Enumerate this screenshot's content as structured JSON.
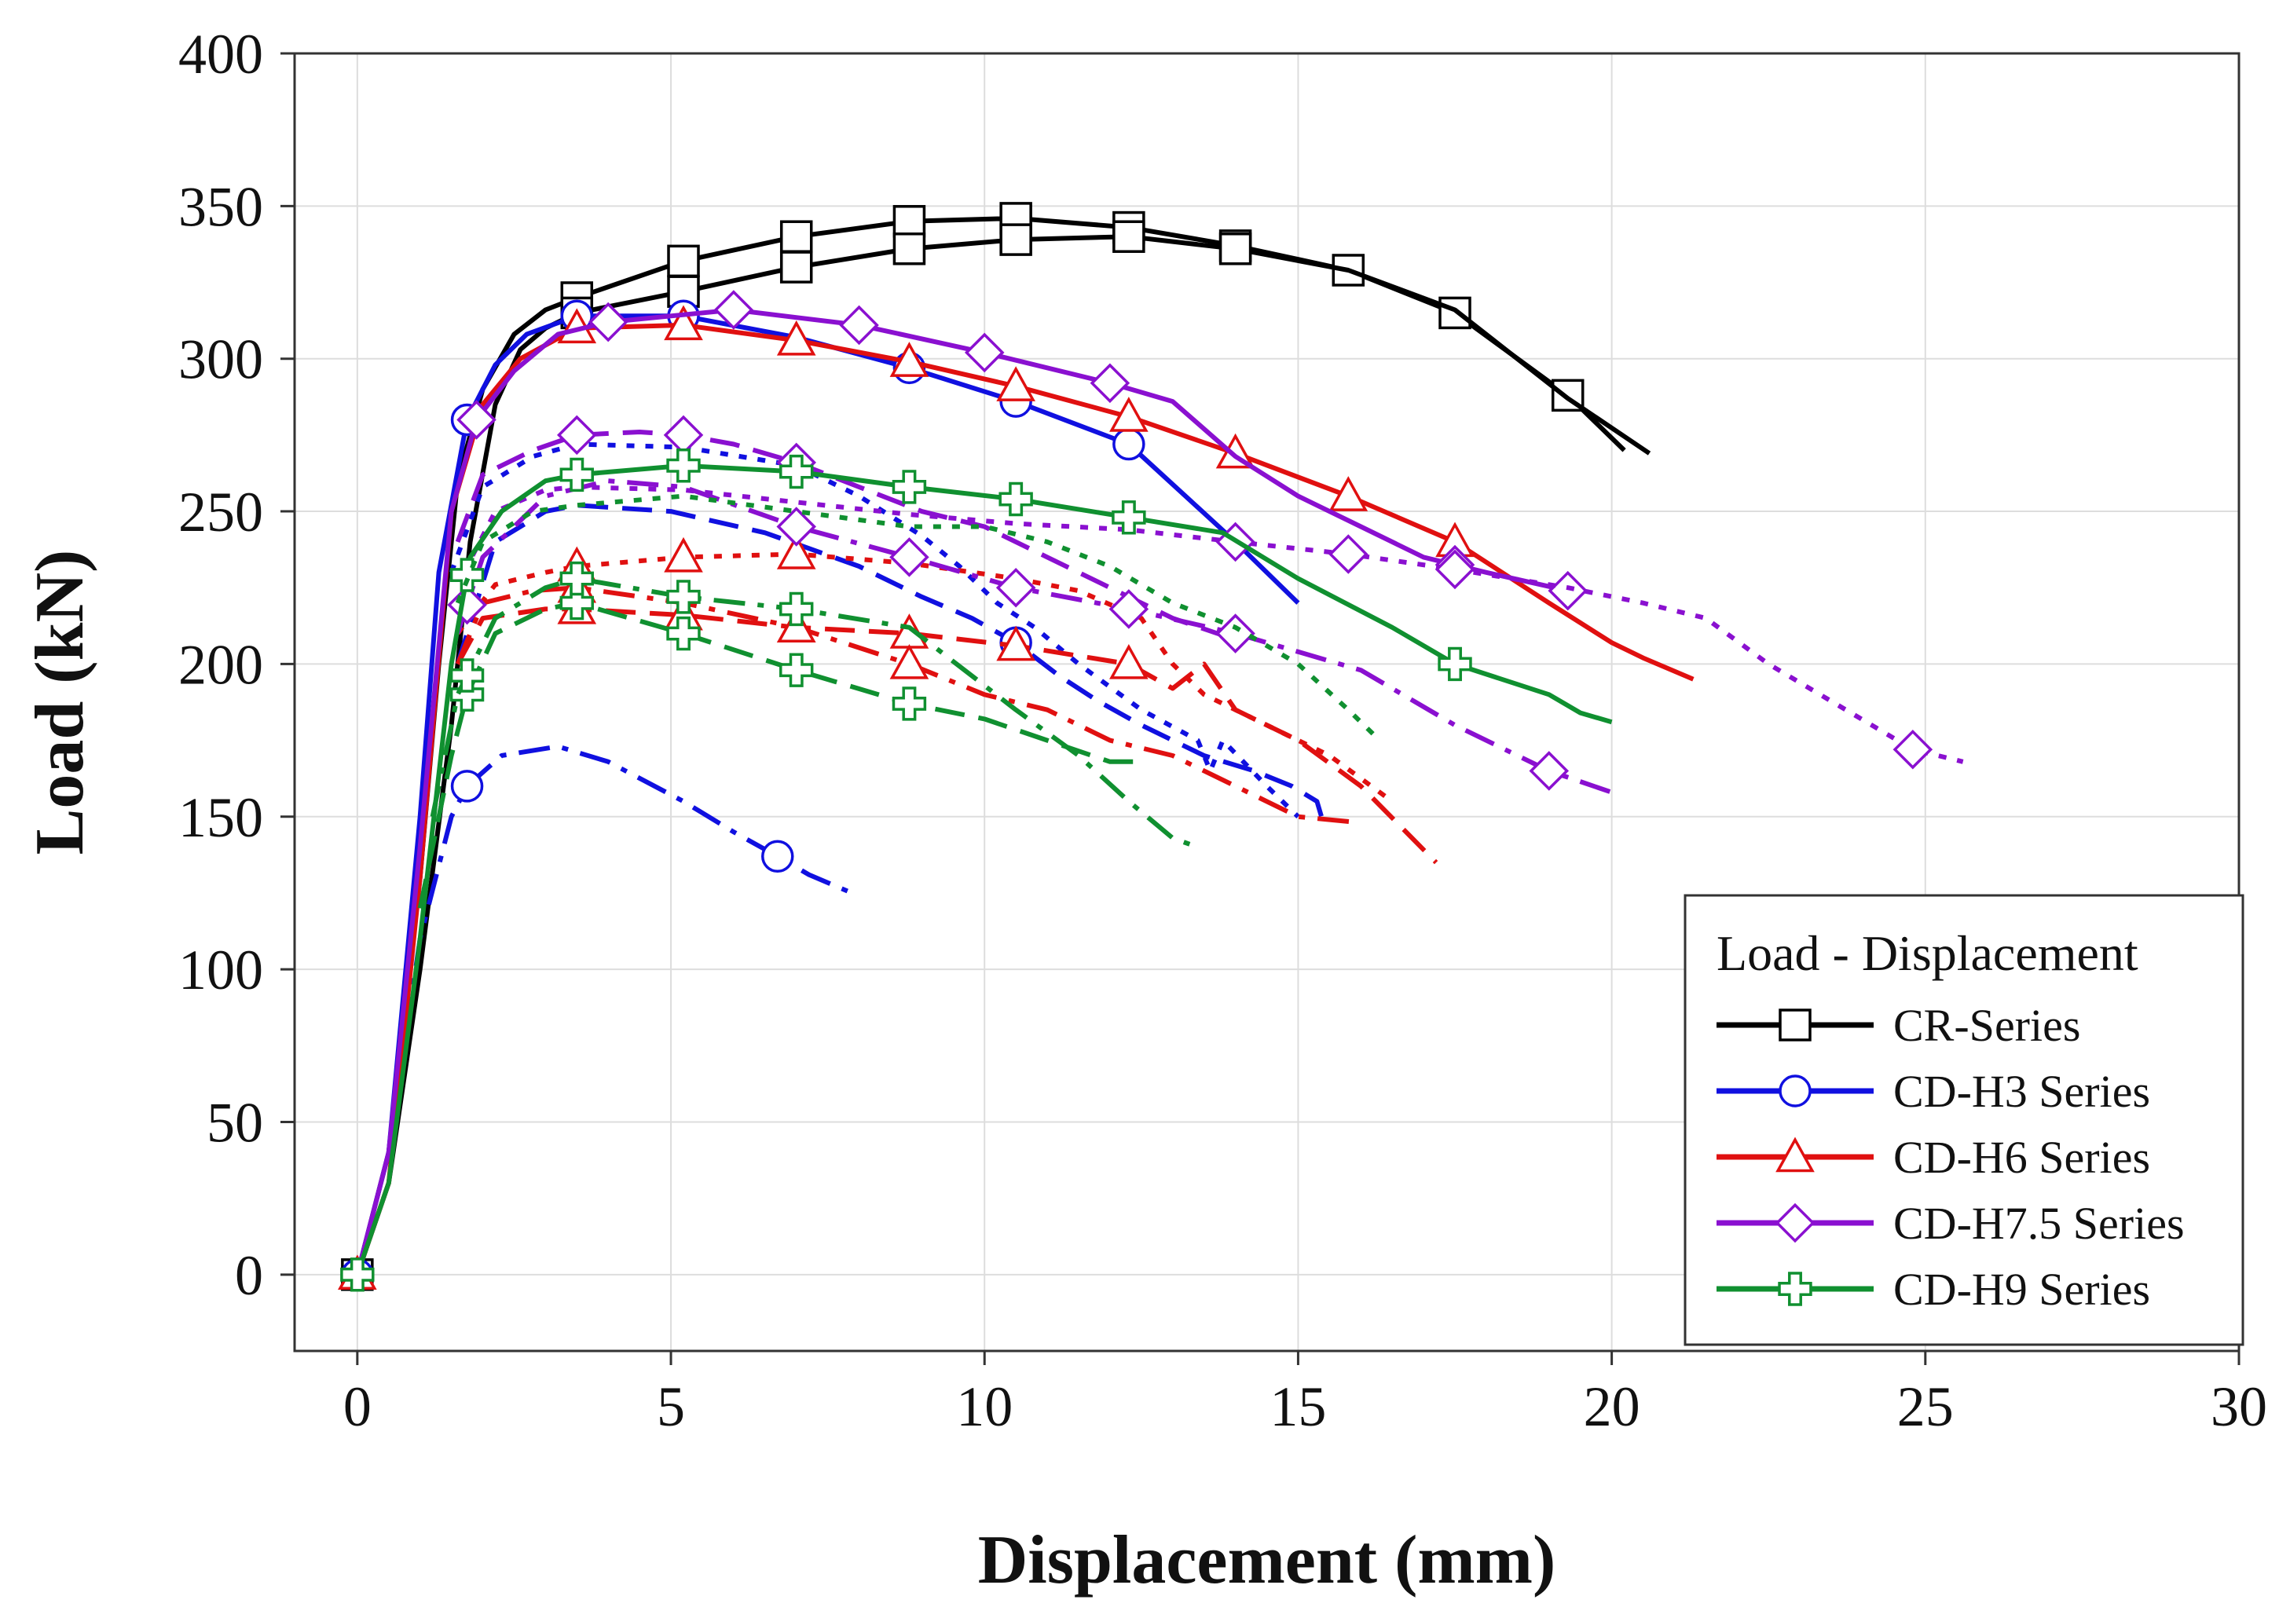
{
  "chart_data": {
    "type": "line",
    "title": "",
    "xlabel": "Displacement (mm)",
    "ylabel": "Load (kN)",
    "xlim": [
      -1,
      30
    ],
    "ylim": [
      -25,
      400
    ],
    "xticks": [
      0,
      5,
      10,
      15,
      20,
      25,
      30
    ],
    "yticks": [
      0,
      50,
      100,
      150,
      200,
      250,
      300,
      350,
      400
    ],
    "grid": true,
    "legend": {
      "title": "Load - Displacement",
      "placement": "bottom-right",
      "entries": [
        {
          "label": "CR-Series",
          "color": "#000000",
          "marker": "square"
        },
        {
          "label": "CD-H3 Series",
          "color": "#1010e0",
          "marker": "circle"
        },
        {
          "label": "CD-H6 Series",
          "color": "#e01010",
          "marker": "triangle"
        },
        {
          "label": "CD-H7.5 Series",
          "color": "#8a10d0",
          "marker": "diamond"
        },
        {
          "label": "CD-H9 Series",
          "color": "#109030",
          "marker": "cross"
        }
      ]
    },
    "series": [
      {
        "name": "CR-Series",
        "color": "#000000",
        "marker": "square",
        "dash": "solid",
        "x": [
          0,
          0.5,
          1.0,
          1.3,
          1.6,
          2.0,
          2.5,
          3.0,
          3.5,
          5.2,
          7.0,
          8.8,
          10.5,
          12.3,
          14.0,
          15.8,
          17.5,
          19.3,
          20.2
        ],
        "y": [
          0,
          40,
          130,
          200,
          260,
          290,
          308,
          316,
          320,
          332,
          340,
          345,
          346,
          343,
          337,
          329,
          315,
          288,
          270
        ],
        "markers_x": [
          0,
          3.5,
          5.2,
          7.0,
          8.8,
          10.5,
          12.3,
          14.0,
          15.8,
          17.5,
          19.3
        ]
      },
      {
        "name": "CR-Series",
        "color": "#000000",
        "marker": "square",
        "dash": "solid",
        "x": [
          0,
          0.5,
          1.0,
          1.5,
          1.8,
          2.2,
          2.6,
          3.0,
          3.5,
          5.2,
          7.0,
          8.8,
          10.5,
          12.3,
          14.0,
          15.8,
          17.5,
          19.3,
          20.6
        ],
        "y": [
          0,
          30,
          100,
          180,
          240,
          285,
          303,
          310,
          315,
          322,
          330,
          336,
          339,
          340,
          336,
          329,
          316,
          287,
          269
        ],
        "markers_x": [
          3.5,
          5.2,
          7.0,
          8.8,
          10.5,
          12.3,
          14.0
        ]
      },
      {
        "name": "CD-H3 Series",
        "color": "#1010e0",
        "marker": "circle",
        "dash": "solid",
        "x": [
          0,
          0.5,
          1.0,
          1.3,
          1.75,
          2.2,
          2.7,
          3.5,
          5.2,
          7.0,
          8.8,
          10.5,
          12.3,
          14.0,
          15.0
        ],
        "y": [
          0,
          40,
          150,
          230,
          280,
          298,
          308,
          314,
          314,
          307,
          297,
          286,
          272,
          240,
          220
        ],
        "markers_x": [
          0,
          1.75,
          3.5,
          5.2,
          8.8,
          10.5,
          12.3
        ]
      },
      {
        "name": "CD-H3 Series",
        "color": "#1010e0",
        "marker": "circle",
        "dash": "dot",
        "x": [
          1.5,
          2.0,
          2.8,
          3.5,
          5.2,
          7.0,
          8.0,
          9.0,
          9.6,
          10.2,
          10.8,
          11.5,
          12.5,
          13.4,
          13.6,
          13.8,
          14.5,
          15.0
        ],
        "y": [
          230,
          258,
          268,
          272,
          271,
          265,
          255,
          242,
          232,
          220,
          212,
          200,
          185,
          175,
          165,
          175,
          160,
          150
        ],
        "markers_x": []
      },
      {
        "name": "CD-H3 Series",
        "color": "#1010e0",
        "marker": "circle",
        "dash": "dash",
        "x": [
          1.6,
          2.2,
          3.0,
          3.5,
          5.0,
          6.5,
          8.0,
          9.0,
          9.8,
          10.5,
          11.2,
          11.8,
          12.5,
          13.0,
          13.5,
          14.3,
          14.9,
          15.3,
          15.4
        ],
        "y": [
          200,
          240,
          250,
          252,
          250,
          243,
          232,
          222,
          215,
          207,
          196,
          188,
          180,
          175,
          170,
          165,
          160,
          155,
          148
        ],
        "markers_x": [
          10.5
        ]
      },
      {
        "name": "CD-H3 Series",
        "color": "#1010e0",
        "marker": "circle",
        "dash": "dashdot",
        "x": [
          0.5,
          1.0,
          1.5,
          1.75,
          2.3,
          3.2,
          4.0,
          5.2,
          6.0,
          6.7,
          7.2,
          8.0
        ],
        "y": [
          40,
          110,
          150,
          160,
          170,
          173,
          168,
          155,
          145,
          137,
          131,
          124
        ],
        "markers_x": [
          1.75,
          6.7
        ]
      },
      {
        "name": "CD-H6 Series",
        "color": "#e01010",
        "marker": "triangle",
        "dash": "solid",
        "x": [
          0,
          0.5,
          1.0,
          1.5,
          2.0,
          2.6,
          3.5,
          5.2,
          7.0,
          8.8,
          10.5,
          12.3,
          14.0,
          15.8,
          17.5,
          19.0,
          20.0,
          20.5,
          21.3
        ],
        "y": [
          0,
          30,
          130,
          250,
          285,
          300,
          310,
          311,
          306,
          299,
          291,
          281,
          269,
          255,
          240,
          220,
          207,
          202,
          195
        ],
        "markers_x": [
          0,
          3.5,
          5.2,
          7.0,
          8.8,
          10.5,
          12.3,
          14.0,
          15.8,
          17.5
        ]
      },
      {
        "name": "CD-H6 Series",
        "color": "#e01010",
        "marker": "triangle",
        "dash": "dot",
        "x": [
          1.6,
          2.2,
          3.0,
          3.5,
          5.2,
          7.0,
          8.8,
          10.5,
          11.5,
          12.5,
          13.0,
          13.5,
          14.5,
          15.5,
          16.5
        ],
        "y": [
          210,
          226,
          230,
          232,
          235,
          236,
          233,
          228,
          224,
          215,
          200,
          190,
          180,
          170,
          155
        ],
        "markers_x": [
          3.5,
          5.2,
          7.0
        ]
      },
      {
        "name": "CD-H6 Series",
        "color": "#e01010",
        "marker": "triangle",
        "dash": "dash",
        "x": [
          1.6,
          2.0,
          3.0,
          3.5,
          5.2,
          7.0,
          8.8,
          10.5,
          12.3,
          13.0,
          13.5,
          14.0,
          15.0,
          16.0,
          17.2
        ],
        "y": [
          200,
          215,
          218,
          218,
          216,
          212,
          210,
          206,
          200,
          192,
          200,
          185,
          175,
          160,
          135
        ],
        "markers_x": [
          3.5,
          5.2,
          7.0,
          8.8,
          10.5,
          12.3
        ]
      },
      {
        "name": "CD-H6 Series",
        "color": "#e01010",
        "marker": "triangle",
        "dash": "dashdot",
        "x": [
          1.6,
          2.0,
          2.8,
          3.5,
          5.2,
          7.0,
          8.8,
          10.0,
          11.0,
          12.0,
          13.0,
          14.0,
          15.0,
          16.0
        ],
        "y": [
          200,
          220,
          224,
          225,
          220,
          212,
          200,
          190,
          185,
          175,
          170,
          160,
          150,
          148
        ],
        "markers_x": [
          3.5,
          7.0,
          8.8
        ]
      },
      {
        "name": "CD-H7.5 Series",
        "color": "#8a10d0",
        "marker": "diamond",
        "dash": "solid",
        "x": [
          0,
          0.5,
          1.0,
          1.5,
          1.9,
          2.5,
          3.2,
          4.0,
          6.0,
          8.0,
          10.0,
          12.0,
          13.0,
          14.0,
          15.0,
          16.0,
          17.0,
          18.0,
          19.3
        ],
        "y": [
          0,
          40,
          140,
          250,
          280,
          296,
          308,
          312,
          316,
          311,
          302,
          292,
          286,
          268,
          255,
          245,
          235,
          230,
          224
        ],
        "markers_x": [
          1.9,
          4.0,
          6.0,
          8.0,
          10.0,
          12.0,
          17.5,
          19.3
        ]
      },
      {
        "name": "CD-H7.5 Series",
        "color": "#8a10d0",
        "marker": "diamond",
        "dash": "dash",
        "x": [
          1.6,
          2.0,
          2.8,
          3.5,
          4.5,
          5.2,
          6.0,
          7.0,
          8.0,
          9.0,
          10.0,
          11.0,
          12.0,
          13.0,
          14.0
        ],
        "y": [
          240,
          262,
          270,
          275,
          276,
          275,
          272,
          266,
          258,
          250,
          245,
          235,
          225,
          215,
          208
        ],
        "markers_x": [
          3.5,
          5.2,
          7.0
        ]
      },
      {
        "name": "CD-H7.5 Series",
        "color": "#8a10d0",
        "marker": "diamond",
        "dash": "dot",
        "x": [
          1.7,
          2.2,
          3.0,
          3.5,
          5.2,
          7.0,
          8.8,
          10.5,
          12.3,
          14.0,
          15.8,
          17.5,
          19.3,
          20.5,
          21.5,
          22.5,
          24.8,
          25.6
        ],
        "y": [
          230,
          250,
          257,
          258,
          257,
          253,
          249,
          246,
          244,
          240,
          236,
          231,
          225,
          220,
          215,
          200,
          172,
          168
        ],
        "markers_x": [
          14.0,
          15.8,
          17.5,
          24.8
        ]
      },
      {
        "name": "CD-H7.5 Series",
        "color": "#8a10d0",
        "marker": "diamond",
        "dash": "dashdot",
        "x": [
          1.6,
          2.0,
          3.0,
          4.0,
          5.2,
          7.0,
          8.8,
          10.5,
          12.3,
          14.0,
          16.0,
          17.5,
          19.0,
          20.0
        ],
        "y": [
          210,
          235,
          255,
          260,
          258,
          245,
          235,
          225,
          218,
          210,
          198,
          180,
          165,
          158
        ],
        "markers_x": [
          1.75,
          7.0,
          8.8,
          10.5,
          12.3,
          14.0,
          19.0
        ]
      },
      {
        "name": "CD-H9 Series",
        "color": "#109030",
        "marker": "cross",
        "dash": "solid",
        "x": [
          0,
          0.5,
          1.0,
          1.5,
          1.8,
          2.3,
          3.0,
          3.5,
          5.2,
          7.0,
          8.8,
          10.5,
          12.3,
          13.8,
          15.0,
          16.5,
          17.5,
          19.0,
          19.5,
          20.0
        ],
        "y": [
          0,
          30,
          110,
          200,
          235,
          250,
          260,
          262,
          265,
          263,
          258,
          254,
          248,
          243,
          228,
          212,
          200,
          190,
          184,
          181
        ],
        "markers_x": [
          0,
          1.75,
          3.5,
          5.2,
          7.0,
          8.8,
          10.5,
          12.3,
          17.5
        ]
      },
      {
        "name": "CD-H9 Series",
        "color": "#109030",
        "marker": "cross",
        "dash": "dot",
        "x": [
          1.6,
          2.0,
          2.8,
          3.5,
          5.2,
          7.0,
          8.8,
          10.0,
          11.0,
          12.0,
          13.0,
          14.0,
          15.0,
          15.8,
          16.3
        ],
        "y": [
          220,
          240,
          250,
          252,
          255,
          250,
          245,
          245,
          240,
          232,
          220,
          212,
          200,
          185,
          175
        ],
        "markers_x": []
      },
      {
        "name": "CD-H9 Series",
        "color": "#109030",
        "marker": "cross",
        "dash": "dash",
        "x": [
          1.0,
          1.5,
          1.75,
          2.2,
          3.0,
          3.5,
          5.2,
          7.0,
          8.8,
          10.0,
          11.0,
          12.0,
          12.5
        ],
        "y": [
          120,
          170,
          190,
          210,
          218,
          220,
          210,
          198,
          187,
          182,
          175,
          168,
          168
        ],
        "markers_x": [
          1.75,
          3.5,
          5.2,
          7.0,
          8.8
        ]
      },
      {
        "name": "CD-H9 Series",
        "color": "#109030",
        "marker": "cross",
        "dash": "dashdot",
        "x": [
          1.2,
          1.6,
          2.2,
          3.0,
          3.5,
          5.2,
          7.0,
          8.8,
          10.5,
          11.5,
          12.3,
          13.0,
          13.4
        ],
        "y": [
          150,
          190,
          215,
          225,
          228,
          222,
          218,
          212,
          185,
          170,
          155,
          143,
          140
        ],
        "markers_x": [
          1.75,
          3.5,
          5.2,
          7.0
        ]
      }
    ]
  }
}
